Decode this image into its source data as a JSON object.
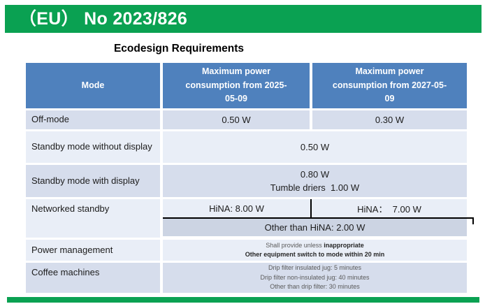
{
  "banner": {
    "text": "（EU） No 2023/826"
  },
  "title": "Ecodesign Requirements",
  "colors": {
    "accent_green": "#0aa152",
    "header_blue": "#4f81bd",
    "row_band_dark": "#d6ddec",
    "row_band_light": "#e9eef7",
    "other_hina_row": "#ccd4e3",
    "annotation_black": "#000000"
  },
  "table": {
    "headers": {
      "mode": "Mode",
      "col2025": "Maximum power consumption from 2025-05-09",
      "col2025_lines": [
        "Maximum power",
        "consumption from 2025-",
        "05-09"
      ],
      "col2027": "Maximum power consumption from 2027-05-09",
      "col2027_lines": [
        "Maximum power",
        "consumption from 2027-05-",
        "09"
      ]
    },
    "rows": {
      "off_mode": {
        "label": "Off-mode",
        "v2025": "0.50 W",
        "v2027": "0.30 W"
      },
      "standby_no_display": {
        "label": "Standby mode without display",
        "value": "0.50 W"
      },
      "standby_display": {
        "label": "Standby mode with display",
        "line1": "0.80 W",
        "line2": "Tumble driers  1.00 W"
      },
      "networked": {
        "label": "Networked standby",
        "hina_2025": "HiNA: 8.00 W",
        "hina_2027": "HiNA：  7.00 W",
        "other": "Other than HiNA: 2.00 W"
      },
      "power_mgmt": {
        "label": "Power management",
        "line1_regular": "Shall provide unless ",
        "line1_bold": "inappropriate",
        "line2": "Other equipment switch to mode within 20 min"
      },
      "coffee": {
        "label": "Coffee machines",
        "line1": "Drip filter insulated jug: 5 minutes",
        "line2": "Drip filter non-insulated jug: 40 minutes",
        "line3": "Other than drip filter: 30 minutes"
      }
    }
  }
}
